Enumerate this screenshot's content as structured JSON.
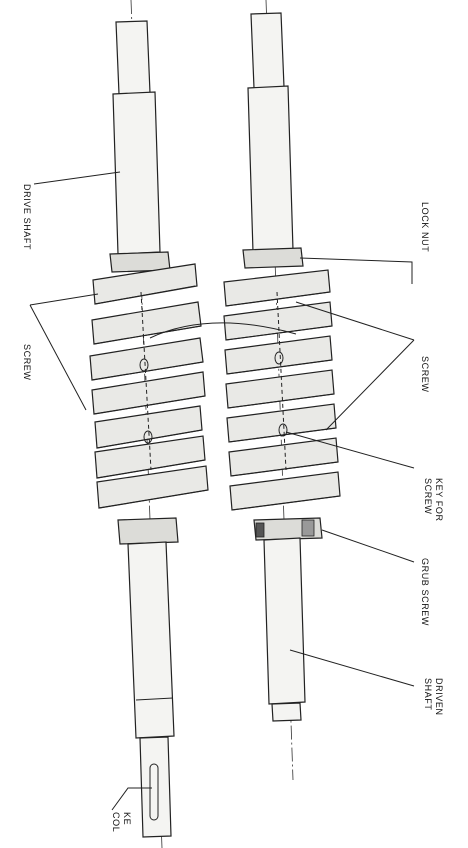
{
  "labels": {
    "drive_shaft": "DRIVE SHAFT",
    "screw_left": "SCREW",
    "lock_nut": "LOCK NUT",
    "screw_right": "SCREW",
    "key_for_screw_1": "KEY FOR",
    "key_for_screw_2": "SCREW",
    "grub_screw": "GRUB SCREW",
    "driven_shaft_1": "DRIVEN",
    "driven_shaft_2": "SHAFT",
    "key_collar_1": "KE",
    "key_collar_2": "COL"
  }
}
